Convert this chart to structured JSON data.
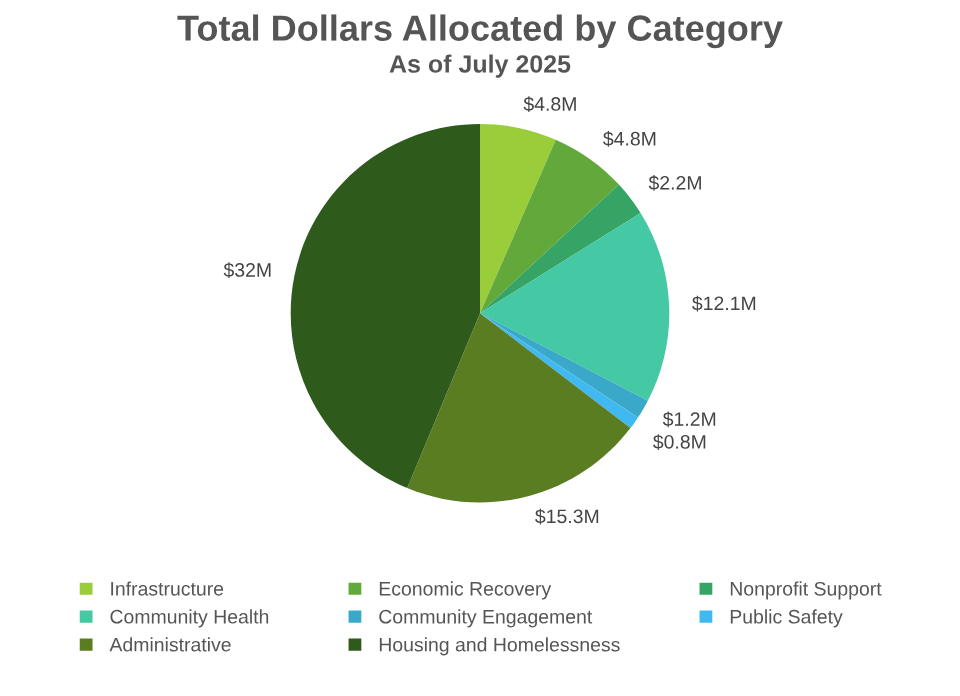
{
  "chart_data": {
    "type": "pie",
    "title": "Total Dollars Allocated by Category",
    "subtitle": "As of July 2025",
    "categories": [
      "Infrastructure",
      "Economic Recovery",
      "Nonprofit Support",
      "Community Health",
      "Community Engagement",
      "Public Safety",
      "Administrative",
      "Housing and Homelessness"
    ],
    "values": [
      4.8,
      4.8,
      2.2,
      12.1,
      1.2,
      0.8,
      15.3,
      32
    ],
    "value_labels": [
      "$4.8M",
      "$4.8M",
      "$2.2M",
      "$12.1M",
      "$1.2M",
      "$0.8M",
      "$15.3M",
      "$32M"
    ],
    "colors": [
      "#9acd3a",
      "#62a83a",
      "#35a465",
      "#45c8a4",
      "#3aa8c8",
      "#40b8f0",
      "#5a7d22",
      "#2e5a1c"
    ],
    "legend": "bottom"
  }
}
